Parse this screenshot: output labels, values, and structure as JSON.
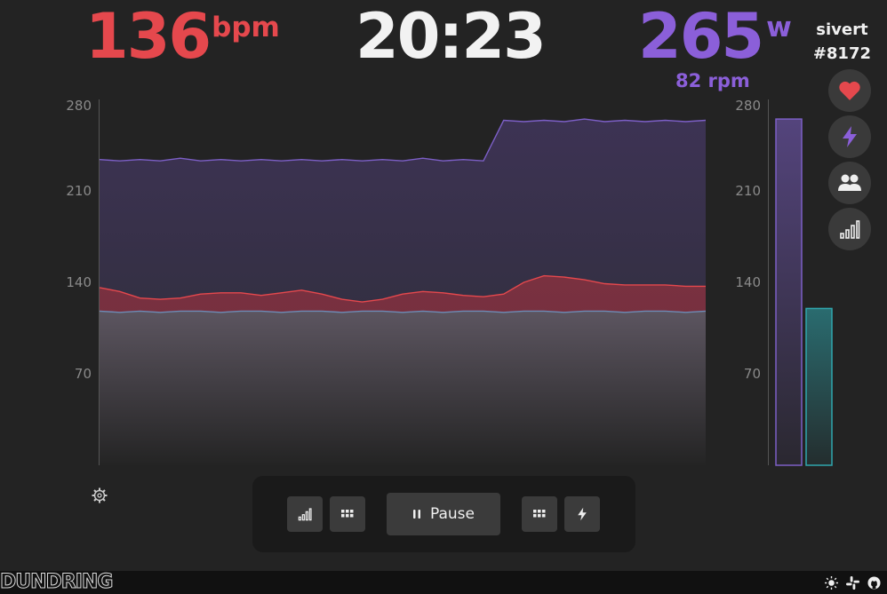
{
  "metrics": {
    "heart_rate": {
      "value": "136",
      "unit": "bpm",
      "color": "#e5484d"
    },
    "timer": "20:23",
    "power": {
      "value": "265",
      "unit": "w",
      "color": "#8b5fd9"
    },
    "cadence": "82 rpm"
  },
  "user": {
    "name": "sivert",
    "id": "#8172"
  },
  "side_buttons": [
    "heart-icon",
    "bolt-icon",
    "users-icon",
    "bar-chart-icon"
  ],
  "chart_data": [
    {
      "type": "area",
      "y_ticks": [
        "280",
        "210",
        "140",
        "70"
      ],
      "ylim": [
        0,
        280
      ],
      "series": [
        {
          "color": "#7c5fc6",
          "values": [
            234,
            233,
            234,
            233,
            235,
            233,
            234,
            233,
            234,
            233,
            234,
            233,
            234,
            233,
            234,
            233,
            235,
            233,
            234,
            233,
            264,
            263,
            264,
            263,
            265,
            263,
            264,
            263,
            264,
            263,
            264
          ]
        },
        {
          "color": "#e5484d",
          "values": [
            136,
            133,
            128,
            127,
            128,
            131,
            132,
            132,
            130,
            132,
            134,
            131,
            127,
            125,
            127,
            131,
            133,
            132,
            130,
            129,
            131,
            140,
            145,
            144,
            142,
            139,
            138,
            138,
            138,
            137,
            137
          ]
        },
        {
          "color": "#6d8bb5",
          "values": [
            118,
            117,
            118,
            117,
            118,
            118,
            117,
            118,
            118,
            117,
            118,
            118,
            117,
            118,
            118,
            117,
            118,
            117,
            118,
            118,
            117,
            118,
            118,
            117,
            118,
            118,
            117,
            118,
            118,
            117,
            118
          ]
        }
      ]
    },
    {
      "type": "bar",
      "y_ticks": [
        "280",
        "210",
        "140",
        "70"
      ],
      "ylim": [
        0,
        280
      ],
      "series": [
        {
          "color": "#7c5fc6",
          "values": [
            265
          ]
        },
        {
          "color": "#2fa7ae",
          "values": [
            120
          ]
        }
      ]
    }
  ],
  "toolbar": {
    "pause_label": "Pause"
  },
  "footer": {
    "logo": "DUNDRING"
  }
}
